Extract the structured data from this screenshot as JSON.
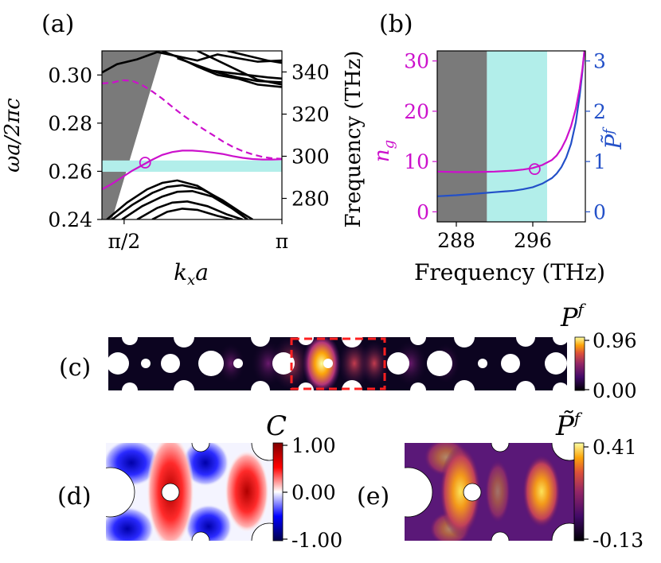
{
  "chart_data": [
    {
      "panel": "a",
      "panel_label": "(a)",
      "type": "line",
      "title": "",
      "xlabel": "k_x a",
      "xlabel_main": "k",
      "xlabel_sub": "x",
      "xlabel_tail": "a",
      "ylabel": "ωa/2πc",
      "ylabel_right": "Frequency (THz)",
      "xlim": [
        1.35,
        3.1416
      ],
      "ylim": [
        0.24,
        0.31
      ],
      "xticks": [
        {
          "v": 1.5708,
          "label": "π/2"
        },
        {
          "v": 3.1416,
          "label": "π"
        }
      ],
      "yticks": [
        {
          "v": 0.24,
          "label": "0.24"
        },
        {
          "v": 0.26,
          "label": "0.26"
        },
        {
          "v": 0.28,
          "label": "0.28"
        },
        {
          "v": 0.3,
          "label": "0.30"
        }
      ],
      "y2lim": [
        270,
        350
      ],
      "y2ticks": [
        {
          "v": 280,
          "label": "280"
        },
        {
          "v": 300,
          "label": "300"
        },
        {
          "v": 320,
          "label": "320"
        },
        {
          "v": 340,
          "label": "340"
        }
      ],
      "light_cone_color": "#7a7a7a",
      "band_highlight": {
        "y": [
          0.2598,
          0.2645
        ],
        "color": "#b2eeea"
      },
      "guided_mode": {
        "color": "#cc10cc",
        "x": [
          1.35,
          1.45,
          1.55,
          1.65,
          1.75,
          1.85,
          1.95,
          2.05,
          2.15,
          2.25,
          2.35,
          2.45,
          2.55,
          2.65,
          2.75,
          2.85,
          2.95,
          3.05,
          3.1416
        ],
        "y": [
          0.2525,
          0.2548,
          0.2575,
          0.2602,
          0.2625,
          0.2648,
          0.2668,
          0.268,
          0.2686,
          0.2686,
          0.2683,
          0.2678,
          0.2672,
          0.2663,
          0.2656,
          0.2651,
          0.2649,
          0.2649,
          0.265
        ]
      },
      "marker": {
        "x": 1.78,
        "y": 0.2636,
        "color": "#cc10cc"
      },
      "ng_curve": {
        "color": "#cc10cc",
        "x": [
          1.35,
          1.45,
          1.55,
          1.65,
          1.75,
          1.85,
          1.95,
          2.05,
          2.15,
          2.25,
          2.35,
          2.45,
          2.55,
          2.65,
          2.75,
          2.85,
          2.95,
          3.05,
          3.1416
        ],
        "y": [
          0.2965,
          0.2968,
          0.2978,
          0.2976,
          0.2958,
          0.2932,
          0.2902,
          0.2868,
          0.2835,
          0.2806,
          0.2778,
          0.2752,
          0.2725,
          0.2702,
          0.2684,
          0.267,
          0.266,
          0.2654,
          0.2652
        ]
      },
      "upper_bands": [
        {
          "x": [
            1.35,
            1.5,
            1.7,
            1.9,
            2.1,
            2.3,
            2.5,
            2.7,
            2.9,
            3.1416
          ],
          "y": [
            0.301,
            0.3045,
            0.3065,
            0.3095,
            0.3078,
            0.306,
            0.3085,
            0.307,
            0.3055,
            0.306
          ]
        },
        {
          "x": [
            1.95,
            2.1,
            2.3,
            2.5,
            2.7,
            2.9,
            3.1416
          ],
          "y": [
            0.31,
            0.3075,
            0.3035,
            0.3,
            0.2985,
            0.296,
            0.295
          ]
        },
        {
          "x": [
            2.3,
            2.5,
            2.7,
            2.9,
            3.1416
          ],
          "y": [
            0.31,
            0.306,
            0.302,
            0.298,
            0.296
          ]
        },
        {
          "x": [
            2.1,
            2.3,
            2.5,
            2.7,
            2.9,
            3.1416
          ],
          "y": [
            0.307,
            0.304,
            0.301,
            0.299,
            0.2975,
            0.297
          ]
        },
        {
          "x": [
            2.6,
            2.8,
            3.0,
            3.1416
          ],
          "y": [
            0.31,
            0.308,
            0.306,
            0.305
          ]
        },
        {
          "x": [
            2.4,
            2.6,
            2.8,
            3.0,
            3.1416
          ],
          "y": [
            0.302,
            0.301,
            0.3,
            0.299,
            0.2985
          ]
        }
      ],
      "lower_bands": [
        {
          "x": [
            1.4,
            1.6,
            1.8,
            1.95,
            2.1,
            2.3,
            2.5,
            2.7,
            2.8
          ],
          "y": [
            0.24,
            0.247,
            0.2525,
            0.2552,
            0.2562,
            0.254,
            0.249,
            0.243,
            0.24
          ]
        },
        {
          "x": [
            1.45,
            1.65,
            1.85,
            2.0,
            2.15,
            2.35,
            2.55,
            2.75,
            2.85
          ],
          "y": [
            0.24,
            0.246,
            0.251,
            0.2535,
            0.2542,
            0.2525,
            0.248,
            0.2425,
            0.24
          ]
        },
        {
          "x": [
            1.55,
            1.75,
            1.95,
            2.1,
            2.25,
            2.45,
            2.65,
            2.8
          ],
          "y": [
            0.24,
            0.2455,
            0.2495,
            0.2515,
            0.2518,
            0.2495,
            0.2445,
            0.24
          ]
        },
        {
          "x": [
            1.7,
            1.9,
            2.05,
            2.2,
            2.4,
            2.6,
            2.75
          ],
          "y": [
            0.24,
            0.2448,
            0.247,
            0.2475,
            0.2455,
            0.242,
            0.24
          ]
        },
        {
          "x": [
            1.85,
            2.0,
            2.15,
            2.3,
            2.5,
            2.65
          ],
          "y": [
            0.24,
            0.2432,
            0.2445,
            0.244,
            0.2415,
            0.24
          ]
        }
      ]
    },
    {
      "panel": "b",
      "panel_label": "(b)",
      "type": "line",
      "title": "",
      "xlabel": "Frequency (THz)",
      "xlim": [
        286.0,
        301.5
      ],
      "xticks": [
        {
          "v": 288,
          "label": "288"
        },
        {
          "v": 296,
          "label": "296"
        }
      ],
      "ylabel_left": "n_g",
      "ylabel_left_main": "n",
      "ylabel_left_sub": "g",
      "ylim_left": [
        -2,
        32
      ],
      "yticks_left": [
        {
          "v": 0,
          "label": "0"
        },
        {
          "v": 10,
          "label": "10"
        },
        {
          "v": 20,
          "label": "20"
        },
        {
          "v": 30,
          "label": "30"
        }
      ],
      "ylabel_right": "P̃^f",
      "ylabel_right_main": "P̃",
      "ylabel_right_sup": "f",
      "ylim_right": [
        -0.2,
        3.2
      ],
      "yticks_right": [
        {
          "v": 0,
          "label": "0"
        },
        {
          "v": 1,
          "label": "1"
        },
        {
          "v": 2,
          "label": "2"
        },
        {
          "v": 3,
          "label": "3"
        }
      ],
      "left_color": "#cc10cc",
      "right_color": "#2350c8",
      "gray_region": {
        "x": [
          286.0,
          291.2
        ],
        "color": "#7a7a7a"
      },
      "cyan_region": {
        "x": [
          291.2,
          297.5
        ],
        "color": "#b2eeea"
      },
      "ng": {
        "x": [
          286.0,
          288,
          290,
          292,
          294,
          295,
          296,
          297,
          298,
          298.5,
          299,
          299.5,
          300,
          300.5,
          300.9,
          301.2,
          301.4
        ],
        "y": [
          8.0,
          7.9,
          7.9,
          8.0,
          8.2,
          8.4,
          8.7,
          9.3,
          10.3,
          11.2,
          12.6,
          14.5,
          17.0,
          20.5,
          24.5,
          28.5,
          32.0
        ]
      },
      "pf": {
        "x": [
          286.0,
          288,
          290,
          292,
          294,
          295,
          296,
          297,
          298,
          298.5,
          299,
          299.5,
          300,
          300.5,
          300.9,
          301.2,
          301.4
        ],
        "y": [
          0.31,
          0.33,
          0.36,
          0.39,
          0.42,
          0.45,
          0.49,
          0.56,
          0.67,
          0.76,
          0.89,
          1.08,
          1.35,
          1.78,
          2.3,
          2.8,
          3.2
        ]
      },
      "marker": {
        "x": 296.2,
        "y": 8.5,
        "color": "#cc10cc"
      }
    },
    {
      "panel": "c",
      "panel_label": "(c)",
      "type": "heatmap",
      "title": "P^f",
      "title_main": "P",
      "title_sup": "f",
      "colorbar": {
        "min_label": "0.00",
        "max_label": "0.96",
        "colormap": "inferno"
      },
      "highlight_box": {
        "color": "#ff2020",
        "style": "dashed"
      }
    },
    {
      "panel": "d",
      "panel_label": "(d)",
      "type": "heatmap",
      "title": "C",
      "colorbar": {
        "min_label": "-1.00",
        "mid_label": "0.00",
        "max_label": "1.00",
        "colormap": "seismic"
      }
    },
    {
      "panel": "e",
      "panel_label": "(e)",
      "type": "heatmap",
      "title": "P̃^f",
      "title_main": "P̃",
      "title_sup": "f",
      "colorbar": {
        "min_label": "-0.13",
        "max_label": "0.41",
        "colormap": "inferno"
      }
    }
  ]
}
